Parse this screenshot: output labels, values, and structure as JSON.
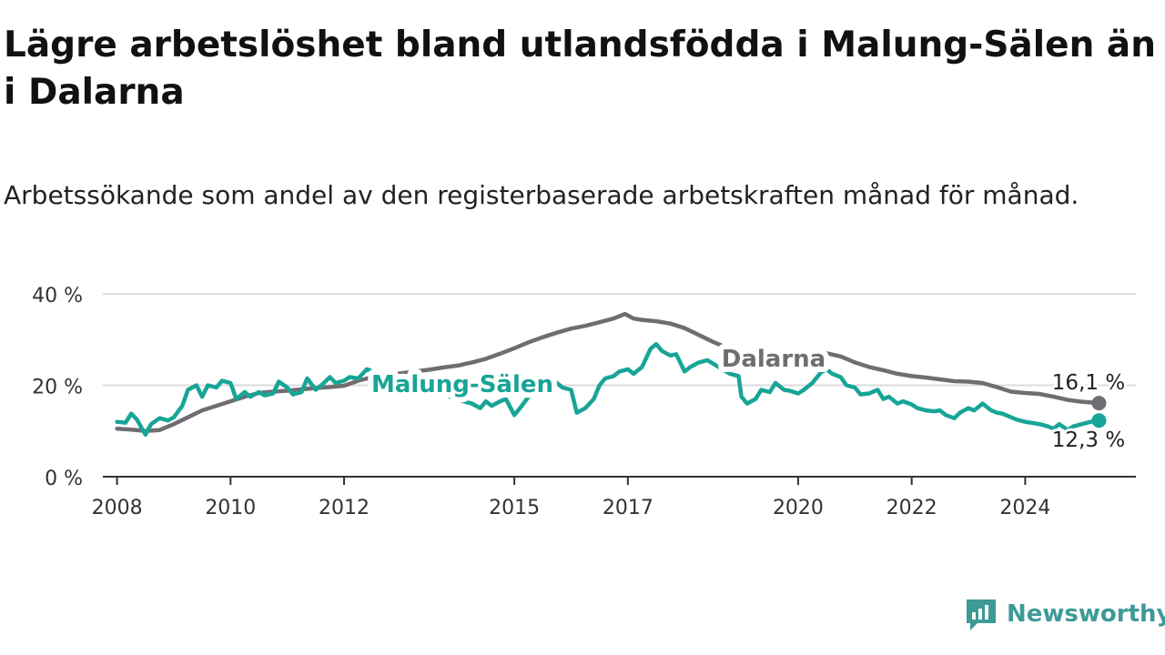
{
  "title": "Lägre arbetslöshet bland utlandsfödda i Malung-Sälen än i Dalarna",
  "subtitle": "Arbetssökande som andel av den registerbaserade arbetskraften månad för månad.",
  "brand": {
    "name": "Newsworthy",
    "icon": "newsworthy-logo-icon",
    "color": "#3d9a96"
  },
  "chart_data": {
    "type": "line",
    "title": "Lägre arbetslöshet bland utlandsfödda i Malung-Sälen än i Dalarna",
    "ylabel": "",
    "xlabel": "",
    "ylim": [
      0,
      40
    ],
    "xlim": [
      2007.75,
      2025.95
    ],
    "y_ticks": [
      0,
      20,
      40
    ],
    "y_tick_labels": [
      "0 %",
      "20 %",
      "40 %"
    ],
    "x_ticks": [
      2008,
      2010,
      2012,
      2015,
      2017,
      2020,
      2022,
      2024
    ],
    "x_tick_labels": [
      "2008",
      "2010",
      "2012",
      "2015",
      "2017",
      "2020",
      "2022",
      "2024"
    ],
    "grid": true,
    "legend": "inline labels",
    "series": [
      {
        "name": "Dalarna",
        "color": "#6f6d72",
        "end_label": "16,1 %",
        "x": [
          2008.0,
          2008.25,
          2008.5,
          2008.75,
          2009.0,
          2009.25,
          2009.5,
          2009.75,
          2010.0,
          2010.25,
          2010.5,
          2010.75,
          2011.0,
          2011.25,
          2011.5,
          2011.75,
          2012.0,
          2012.25,
          2012.5,
          2012.75,
          2013.0,
          2013.25,
          2013.5,
          2013.75,
          2014.0,
          2014.25,
          2014.5,
          2014.75,
          2015.0,
          2015.25,
          2015.5,
          2015.75,
          2016.0,
          2016.25,
          2016.5,
          2016.75,
          2016.95,
          2017.1,
          2017.25,
          2017.5,
          2017.75,
          2018.0,
          2018.25,
          2018.5,
          2018.75,
          2019.0,
          2019.25,
          2019.5,
          2019.75,
          2020.0,
          2020.25,
          2020.5,
          2020.75,
          2021.0,
          2021.25,
          2021.5,
          2021.75,
          2022.0,
          2022.25,
          2022.5,
          2022.75,
          2023.0,
          2023.25,
          2023.5,
          2023.75,
          2024.0,
          2024.25,
          2024.5,
          2024.75,
          2025.0,
          2025.3
        ],
        "values": [
          10.5,
          10.3,
          10.0,
          10.2,
          11.5,
          13.0,
          14.5,
          15.5,
          16.5,
          17.5,
          18.3,
          18.6,
          18.8,
          19.1,
          19.4,
          19.6,
          19.9,
          21.0,
          21.8,
          22.2,
          22.6,
          23.0,
          23.4,
          23.9,
          24.3,
          25.0,
          25.8,
          26.9,
          28.1,
          29.4,
          30.5,
          31.5,
          32.4,
          33.0,
          33.8,
          34.6,
          35.6,
          34.6,
          34.3,
          34.0,
          33.5,
          32.5,
          31.0,
          29.5,
          28.2,
          27.0,
          26.0,
          25.0,
          25.1,
          25.5,
          26.5,
          27.0,
          26.3,
          25.0,
          24.0,
          23.3,
          22.5,
          22.0,
          21.7,
          21.3,
          20.9,
          20.8,
          20.5,
          19.6,
          18.6,
          18.3,
          18.1,
          17.5,
          16.8,
          16.4,
          16.1
        ]
      },
      {
        "name": "Malung-Sälen",
        "color": "#17a597",
        "end_label": "12,3 %",
        "x": [
          2008.0,
          2008.15,
          2008.25,
          2008.35,
          2008.5,
          2008.6,
          2008.75,
          2008.9,
          2009.0,
          2009.15,
          2009.25,
          2009.4,
          2009.5,
          2009.6,
          2009.75,
          2009.85,
          2010.0,
          2010.1,
          2010.25,
          2010.35,
          2010.5,
          2010.6,
          2010.75,
          2010.85,
          2011.0,
          2011.1,
          2011.25,
          2011.35,
          2011.5,
          2011.6,
          2011.75,
          2011.85,
          2012.0,
          2012.1,
          2012.25,
          2012.4,
          2012.55,
          2012.7,
          2012.85,
          2013.0,
          2013.2,
          2013.4,
          2013.6,
          2013.8,
          2013.95,
          2014.1,
          2014.25,
          2014.4,
          2014.5,
          2014.6,
          2014.75,
          2014.85,
          2015.0,
          2015.1,
          2015.25,
          2015.4,
          2015.5,
          2015.6,
          2015.75,
          2015.85,
          2016.0,
          2016.1,
          2016.25,
          2016.4,
          2016.5,
          2016.6,
          2016.75,
          2016.85,
          2017.0,
          2017.1,
          2017.25,
          2017.4,
          2017.5,
          2017.6,
          2017.75,
          2017.85,
          2018.0,
          2018.1,
          2018.25,
          2018.4,
          2018.6,
          2018.8,
          2018.95,
          2019.0,
          2019.1,
          2019.25,
          2019.35,
          2019.5,
          2019.6,
          2019.75,
          2019.85,
          2020.0,
          2020.1,
          2020.25,
          2020.4,
          2020.5,
          2020.6,
          2020.75,
          2020.85,
          2021.0,
          2021.1,
          2021.25,
          2021.4,
          2021.5,
          2021.6,
          2021.75,
          2021.85,
          2022.0,
          2022.1,
          2022.25,
          2022.4,
          2022.5,
          2022.6,
          2022.75,
          2022.85,
          2023.0,
          2023.1,
          2023.25,
          2023.4,
          2023.5,
          2023.6,
          2023.75,
          2023.85,
          2024.0,
          2024.1,
          2024.25,
          2024.4,
          2024.5,
          2024.6,
          2024.75,
          2024.85,
          2025.0,
          2025.15,
          2025.3
        ],
        "values": [
          12.0,
          11.8,
          13.8,
          12.5,
          9.2,
          11.5,
          12.8,
          12.3,
          13.0,
          15.5,
          19.0,
          20.0,
          17.5,
          20.0,
          19.5,
          21.0,
          20.5,
          17.0,
          18.5,
          17.5,
          18.5,
          17.8,
          18.2,
          20.8,
          19.5,
          18.0,
          18.5,
          21.5,
          19.0,
          20.0,
          21.8,
          20.5,
          21.0,
          21.8,
          21.5,
          23.5,
          22.8,
          21.5,
          21.0,
          20.0,
          19.5,
          19.0,
          18.5,
          18.0,
          17.0,
          16.5,
          16.0,
          15.0,
          16.5,
          15.5,
          16.5,
          17.0,
          13.5,
          15.0,
          17.5,
          18.5,
          19.5,
          20.0,
          20.5,
          19.5,
          19.0,
          14.0,
          15.0,
          17.0,
          20.0,
          21.5,
          22.0,
          23.0,
          23.5,
          22.5,
          24.0,
          28.0,
          29.0,
          27.5,
          26.5,
          26.8,
          23.0,
          24.0,
          25.0,
          25.5,
          24.0,
          22.5,
          22.0,
          17.5,
          16.0,
          17.0,
          19.0,
          18.5,
          20.5,
          19.0,
          18.8,
          18.2,
          19.0,
          20.5,
          22.8,
          23.5,
          22.5,
          21.8,
          20.0,
          19.5,
          18.0,
          18.2,
          19.0,
          17.0,
          17.5,
          16.0,
          16.5,
          15.8,
          15.0,
          14.5,
          14.3,
          14.5,
          13.5,
          12.8,
          14.0,
          15.0,
          14.5,
          16.0,
          14.5,
          14.0,
          13.8,
          13.0,
          12.5,
          12.0,
          11.8,
          11.5,
          11.0,
          10.5,
          11.5,
          10.2,
          11.0,
          11.5,
          12.0,
          12.3
        ]
      }
    ]
  }
}
